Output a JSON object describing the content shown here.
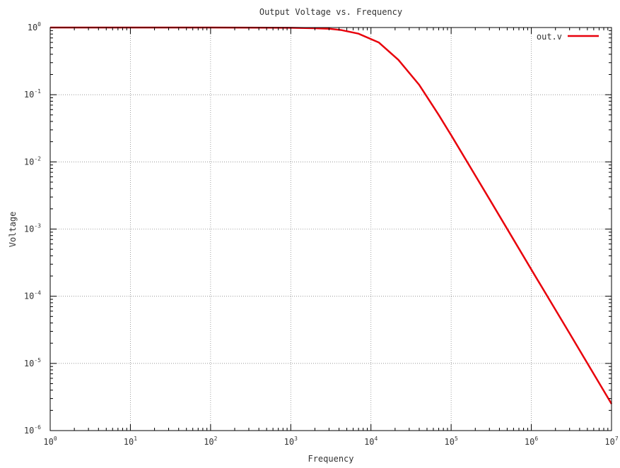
{
  "chart_data": {
    "type": "line",
    "title": "Output Voltage vs. Frequency",
    "xlabel": "Frequency",
    "ylabel": "Voltage",
    "xscale": "log",
    "yscale": "log",
    "xlim": [
      1,
      10000000
    ],
    "ylim": [
      1e-06,
      1
    ],
    "grid": true,
    "legend_position": "top-right",
    "x_ticks": [
      {
        "base": "10",
        "exp": "0"
      },
      {
        "base": "10",
        "exp": "1"
      },
      {
        "base": "10",
        "exp": "2"
      },
      {
        "base": "10",
        "exp": "3"
      },
      {
        "base": "10",
        "exp": "4"
      },
      {
        "base": "10",
        "exp": "5"
      },
      {
        "base": "10",
        "exp": "6"
      },
      {
        "base": "10",
        "exp": "7"
      }
    ],
    "y_ticks": [
      {
        "base": "10",
        "exp": "0"
      },
      {
        "base": "10",
        "exp": "-1"
      },
      {
        "base": "10",
        "exp": "-2"
      },
      {
        "base": "10",
        "exp": "-3"
      },
      {
        "base": "10",
        "exp": "-4"
      },
      {
        "base": "10",
        "exp": "-5"
      },
      {
        "base": "10",
        "exp": "-6"
      }
    ],
    "series": [
      {
        "name": "out.v",
        "color": "#e8000b",
        "x": [
          1,
          10,
          100,
          1000,
          2000,
          3000,
          4200,
          7000,
          12500,
          22000,
          40000,
          70000,
          100000,
          300000,
          1000000,
          3000000,
          10000000
        ],
        "y": [
          1.0,
          1.0,
          1.0,
          0.99,
          0.975,
          0.96,
          0.92,
          0.81,
          0.6,
          0.33,
          0.14,
          0.05,
          0.025,
          0.0028,
          0.00025,
          2.8e-05,
          2.5e-06
        ]
      }
    ]
  }
}
